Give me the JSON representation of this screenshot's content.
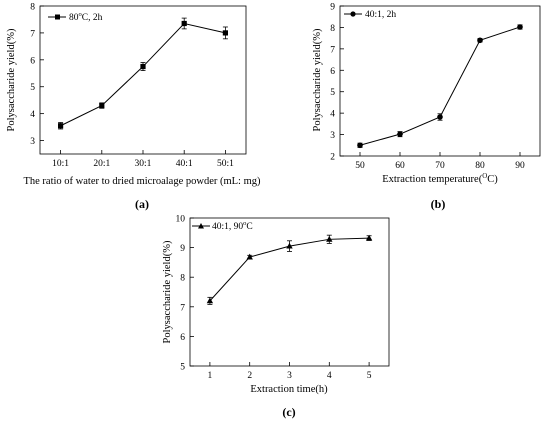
{
  "chart_data": [
    {
      "panel": "(a)",
      "type": "line",
      "marker": "square",
      "legend": "80°C, 2h",
      "legend_sup": "o",
      "legend_parts": [
        "80",
        "C, 2h"
      ],
      "legend_position": "top-left",
      "xlabel": "The ratio of water to dried microalage  powder (mL: mg)",
      "ylabel": "Polysaccharide yield(%)",
      "categories": [
        "10:1",
        "20:1",
        "30:1",
        "40:1",
        "50:1"
      ],
      "values": [
        3.55,
        4.3,
        5.75,
        7.35,
        7.0
      ],
      "error": [
        0.12,
        0.1,
        0.15,
        0.2,
        0.22
      ],
      "ylim": [
        2.5,
        8.0
      ],
      "yticks": [
        3,
        4,
        5,
        6,
        7,
        8
      ]
    },
    {
      "panel": "(b)",
      "type": "line",
      "marker": "circle",
      "legend": "40:1, 2h",
      "legend_position": "top-left",
      "xlabel": "Extraction temperature(°C)",
      "xlabel_parts": [
        "Extraction temperature(",
        "O",
        "C)"
      ],
      "ylabel": "Polysaccharide yield(%)",
      "x": [
        50,
        60,
        70,
        80,
        90
      ],
      "values": [
        2.5,
        3.02,
        3.82,
        7.4,
        8.02
      ],
      "error": [
        0.1,
        0.12,
        0.15,
        0.08,
        0.1
      ],
      "xlim": [
        45,
        95
      ],
      "xticks": [
        50,
        60,
        70,
        80,
        90
      ],
      "ylim": [
        2.0,
        9.0
      ],
      "yticks": [
        2,
        3,
        4,
        5,
        6,
        7,
        8,
        9
      ]
    },
    {
      "panel": "(c)",
      "type": "line",
      "marker": "triangle",
      "legend": "40:1, 90°C",
      "legend_parts": [
        "40:1, 90",
        "C"
      ],
      "legend_sup": "o",
      "legend_position": "top-left",
      "xlabel": "Extraction time(h)",
      "ylabel": "Polysaccharide yield(%)",
      "x": [
        1,
        2,
        3,
        4,
        5
      ],
      "values": [
        7.2,
        8.68,
        9.05,
        9.28,
        9.32
      ],
      "error": [
        0.12,
        0.06,
        0.18,
        0.14,
        0.08
      ],
      "xlim": [
        0.5,
        5.5
      ],
      "xticks": [
        1,
        2,
        3,
        4,
        5
      ],
      "ylim": [
        5,
        10
      ],
      "yticks": [
        5,
        6,
        7,
        8,
        9,
        10
      ]
    }
  ]
}
